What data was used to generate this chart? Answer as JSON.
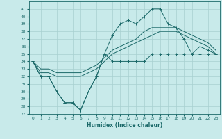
{
  "xlabel": "Humidex (Indice chaleur)",
  "background_color": "#c8eaea",
  "grid_color": "#a8d0d0",
  "line_color": "#1a6868",
  "hours": [
    0,
    1,
    2,
    3,
    4,
    5,
    6,
    7,
    8,
    9,
    10,
    11,
    12,
    13,
    14,
    15,
    16,
    17,
    18,
    19,
    20,
    21,
    22,
    23
  ],
  "max_curve": [
    34,
    32,
    32,
    30,
    28.5,
    28.5,
    27.5,
    30,
    32,
    35,
    37.5,
    39,
    39.5,
    39,
    40,
    41,
    41,
    39,
    38.5,
    37,
    35,
    36,
    35.5,
    35
  ],
  "avg_upper": [
    34,
    33,
    33,
    32.5,
    32.5,
    32.5,
    32.5,
    33,
    33.5,
    34.5,
    35.5,
    36,
    36.5,
    37,
    38,
    38.5,
    38.5,
    38.5,
    38.5,
    38,
    37.5,
    37,
    36.5,
    35.5
  ],
  "avg_lower": [
    34,
    32.5,
    32.5,
    32,
    32,
    32,
    32,
    32.5,
    33,
    34,
    35,
    35.5,
    36,
    36.5,
    37,
    37.5,
    38,
    38,
    38,
    37.5,
    37,
    36.5,
    36,
    35
  ],
  "min_curve": [
    34,
    32,
    32,
    30,
    28.5,
    28.5,
    27.5,
    30,
    32,
    35,
    34,
    34,
    34,
    34,
    34,
    35,
    35,
    35,
    35,
    35,
    35,
    35,
    35,
    35
  ],
  "ylim": [
    27,
    42
  ],
  "yticks": [
    27,
    28,
    29,
    30,
    31,
    32,
    33,
    34,
    35,
    36,
    37,
    38,
    39,
    40,
    41
  ],
  "xlim": [
    -0.5,
    23.5
  ],
  "xticks": [
    0,
    1,
    2,
    3,
    4,
    5,
    6,
    7,
    8,
    9,
    10,
    11,
    12,
    13,
    14,
    15,
    16,
    17,
    18,
    19,
    20,
    21,
    22,
    23
  ]
}
